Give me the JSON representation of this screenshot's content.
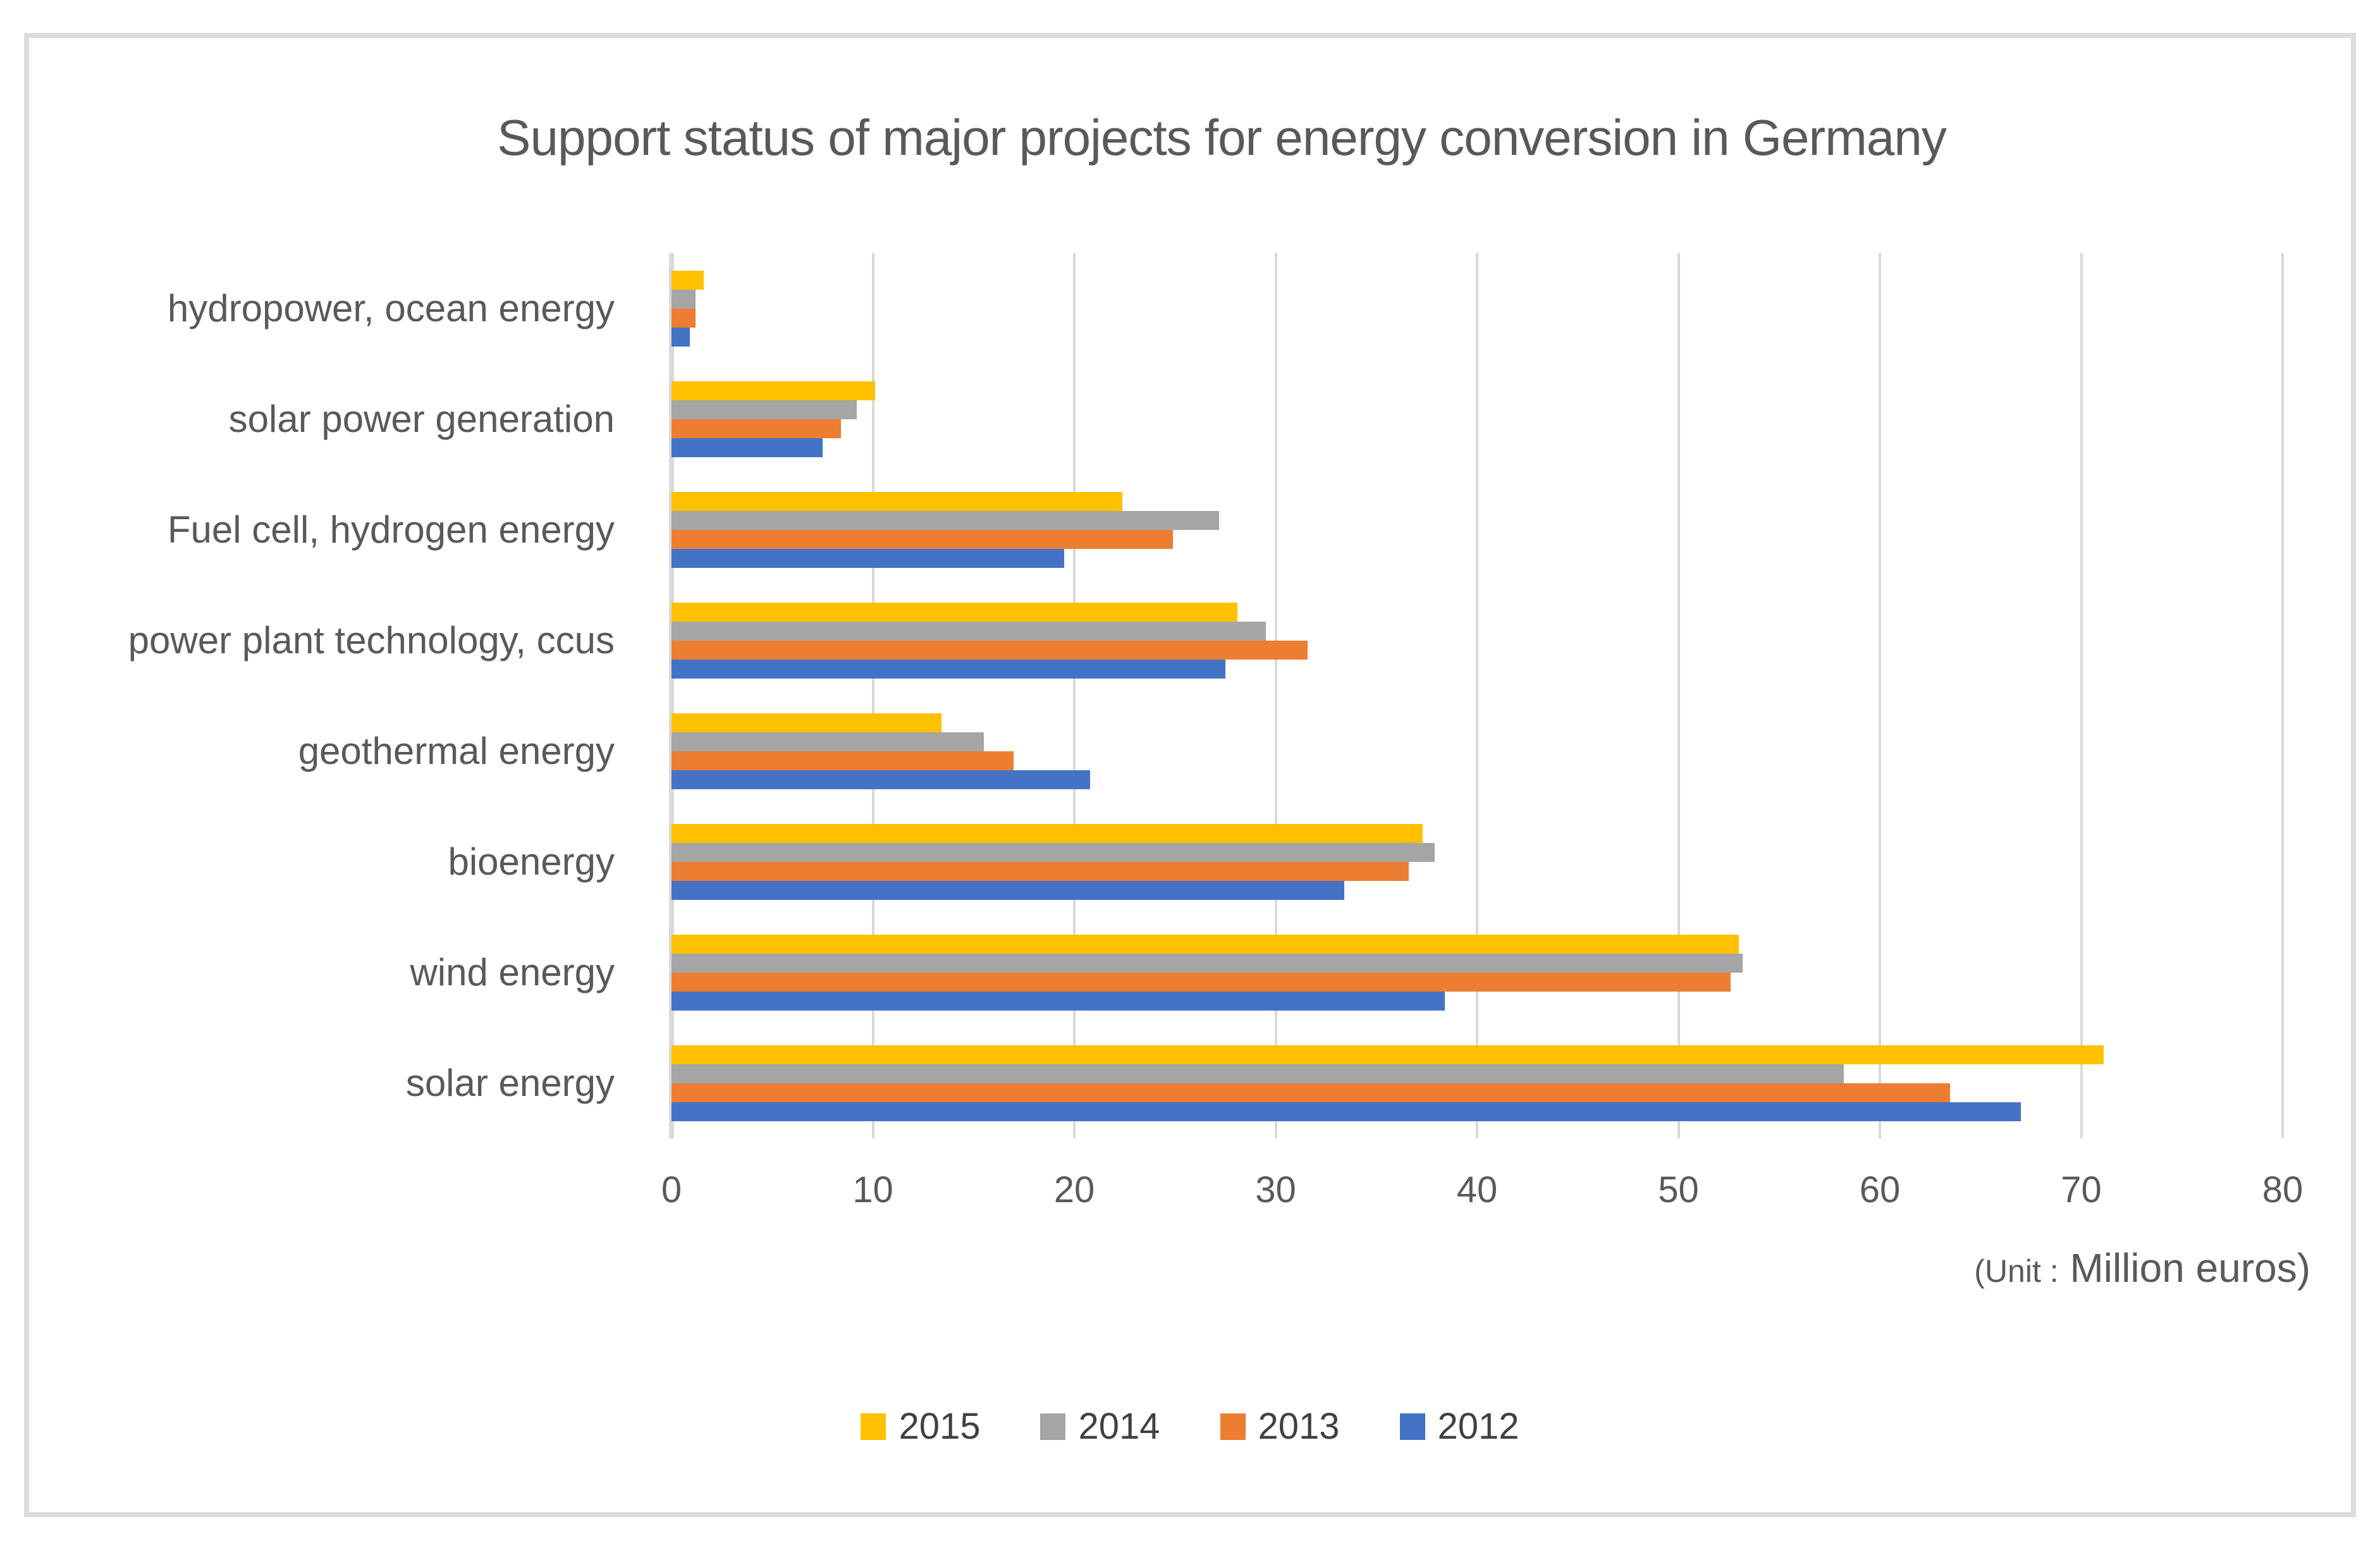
{
  "chart_data": {
    "type": "bar",
    "orientation": "horizontal",
    "title": "Support status of major projects for energy conversion in Germany",
    "unit_label": "(Unit : Million euros)",
    "unit_prefix": "(Unit :",
    "unit_main": " Million euros)",
    "categories": [
      "hydropower, ocean energy",
      "solar power generation",
      "Fuel cell, hydrogen energy",
      "power plant technology, ccus",
      "geothermal energy",
      "bioenergy",
      "wind energy",
      "solar energy"
    ],
    "series": [
      {
        "name": "2015",
        "color": "#FFC000",
        "values": [
          1.6,
          10.1,
          22.4,
          28.1,
          13.4,
          37.3,
          53.0,
          71.1
        ]
      },
      {
        "name": "2014",
        "color": "#A5A5A5",
        "values": [
          1.2,
          9.2,
          27.2,
          29.5,
          15.5,
          37.9,
          53.2,
          58.2
        ]
      },
      {
        "name": "2013",
        "color": "#ED7D31",
        "values": [
          1.2,
          8.4,
          24.9,
          31.6,
          17.0,
          36.6,
          52.6,
          63.5
        ]
      },
      {
        "name": "2012",
        "color": "#4472C4",
        "values": [
          0.9,
          7.5,
          19.5,
          27.5,
          20.8,
          33.4,
          38.4,
          67.0
        ]
      }
    ],
    "x_ticks": [
      0,
      10,
      20,
      30,
      40,
      50,
      60,
      70,
      80
    ],
    "xlim": [
      0,
      80
    ],
    "grid": true,
    "legend_position": "bottom",
    "legend_labels": [
      "2015",
      "2014",
      "2013",
      "2012"
    ]
  },
  "style": {
    "text_color": "#595959",
    "grid_color": "#D9D9D9",
    "frame_color": "#DCDCDC",
    "background": "#FFFFFF"
  }
}
